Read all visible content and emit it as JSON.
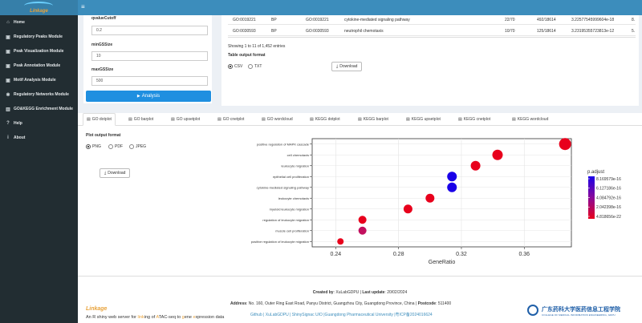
{
  "app": {
    "logo_text": "Linkage"
  },
  "sidebar": {
    "items": [
      {
        "label": "Home",
        "icon": "home-icon",
        "glyph": "⌂"
      },
      {
        "label": "Regulatory Peaks Module",
        "icon": "cube-icon",
        "glyph": "▣"
      },
      {
        "label": "Peak Visualization Module",
        "icon": "cube-icon",
        "glyph": "▣"
      },
      {
        "label": "Peak Annotation Module",
        "icon": "cube-icon",
        "glyph": "▣"
      },
      {
        "label": "Motif Analysis Module",
        "icon": "cube-icon",
        "glyph": "▣"
      },
      {
        "label": "Regulatory Networks Module",
        "icon": "gear-icon",
        "glyph": "✱"
      },
      {
        "label": "GO&KEGG Enrichment Module",
        "icon": "chart-icon",
        "glyph": "▥"
      },
      {
        "label": "Help",
        "icon": "question-icon",
        "glyph": "?"
      },
      {
        "label": "About",
        "icon": "info-icon",
        "glyph": "i"
      }
    ]
  },
  "settings": {
    "qvalue_label": "qvalueCutoff",
    "qvalue_value": "0.2",
    "min_label": "minGSSize",
    "min_value": "10",
    "max_label": "maxGSSize",
    "max_value": "500",
    "analysis_label": "Analysis"
  },
  "table": {
    "rows": [
      [
        "GO:0019221",
        "BP",
        "GO:0019221",
        "cytokine-mediated signaling pathway",
        "22/70",
        "492/18614",
        "3.22577545999604e-18",
        "8."
      ],
      [
        "GO:0030593",
        "BP",
        "GO:0030593",
        "neutrophil chemotaxis",
        "10/70",
        "125/18614",
        "3.23195355723813e-12",
        "5."
      ]
    ],
    "showing": "Showing 1 to 11 of 1,452 entries",
    "format_title": "Table output format",
    "options": [
      "CSV",
      "TXT"
    ],
    "selected": "CSV",
    "download_label": "Download"
  },
  "tabs": [
    "GO dotplot",
    "GO barplot",
    "GO upsetplot",
    "GO cnetplot",
    "GO wordcloud",
    "KEGG dotplot",
    "KEGG barplot",
    "KEGG upsetplot",
    "KEGG cnetplot",
    "KEGG wordcloud"
  ],
  "plot": {
    "format_title": "Plot output format",
    "options": [
      "PNG",
      "PDF",
      "JPEG"
    ],
    "selected": "PNG",
    "download_label": "Download"
  },
  "chart_data": {
    "type": "scatter",
    "title": "",
    "xlabel": "GeneRatio",
    "ylabel": "",
    "xlim": [
      0.225,
      0.39
    ],
    "xticks": [
      "0.24",
      "0.28",
      "0.32",
      "0.36"
    ],
    "xtick_values": [
      0.24,
      0.28,
      0.32,
      0.36
    ],
    "categories": [
      "positive regulation of MAPK cascade",
      "cell chemotaxis",
      "leukocyte migration",
      "epithelial cell proliferation",
      "cytokine-mediated signaling pathway",
      "leukocyte chemotaxis",
      "myeloid leukocyte migration",
      "regulation of leukocyte migration",
      "muscle cell proliferation",
      "positive regulation of leukocyte migration"
    ],
    "x": [
      0.386,
      0.343,
      0.329,
      0.314,
      0.314,
      0.3,
      0.286,
      0.257,
      0.257,
      0.243
    ],
    "size": [
      15,
      13,
      12,
      12,
      12,
      11,
      11,
      10,
      10,
      8
    ],
    "color": [
      "#e8001c",
      "#e8001c",
      "#e8001c",
      "#1a00e8",
      "#1a00e8",
      "#e8001c",
      "#e8001c",
      "#e8001c",
      "#c2105e",
      "#e8001c"
    ],
    "legend": {
      "title": "p.adjust",
      "labels": [
        "8.169579e-16",
        "6.127186e-16",
        "4.084792e-16",
        "2.042398e-16",
        "4.818656e-22"
      ],
      "placement": "right"
    },
    "grid": true
  },
  "footer": {
    "created_by_label": "Created by",
    "created_by": "XuLabGDPU",
    "last_update_label": "Last update",
    "last_update": "20/02/2024",
    "address_label": "Address",
    "address": "No. 160, Outer Ring East Road, Panyu District, Guangzhou City, Guangdong Province, China",
    "postcode_label": "Postcode",
    "postcode": "511400",
    "brand": "Linkage",
    "links": "Github | XuLabGDPU | ShinySignac UIO |Guangdong Pharmaceutical University |粤ICP备2024016624",
    "university": "广东药科大学医药信息工程学院",
    "university_en": "COLLEGE OF MEDICAL INFORMATION ENGINEERING, GDPU"
  }
}
